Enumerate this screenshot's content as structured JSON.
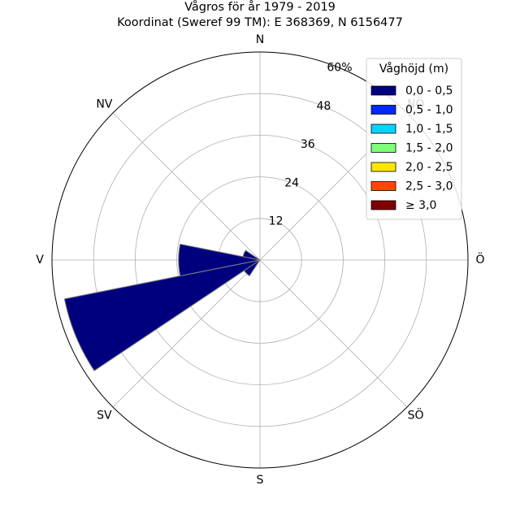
{
  "chart_data": {
    "type": "polar-bar",
    "title": "Vågros för år 1979 - 2019",
    "subtitle": "Koordinat (Sweref 99 TM): E 368369, N 6156477",
    "directions": [
      {
        "label": "N",
        "angle": 0
      },
      {
        "label": "NV",
        "angle": 315
      },
      {
        "label": "V",
        "angle": 270
      },
      {
        "label": "SV",
        "angle": 225
      },
      {
        "label": "S",
        "angle": 180
      },
      {
        "label": "SÖ",
        "angle": 135
      },
      {
        "label": "Ö",
        "angle": 90
      },
      {
        "label": "NÖ",
        "angle": 45
      }
    ],
    "r_ticks": [
      "12",
      "24",
      "36",
      "48",
      "60%"
    ],
    "r_tick_values": [
      12,
      24,
      36,
      48,
      60
    ],
    "rmax": 60,
    "sector_width_deg": 22.5,
    "bars": [
      {
        "direction_deg": 247.5,
        "series": "0,0 - 0,5",
        "value": 57.5
      },
      {
        "direction_deg": 270,
        "series": "0,0 - 0,5",
        "value": 23.5
      },
      {
        "direction_deg": 292.5,
        "series": "0,0 - 0,5",
        "value": 5.0
      },
      {
        "direction_deg": 225,
        "series": "0,0 - 0,5",
        "value": 5.5
      }
    ],
    "legend": {
      "title": "Våghöjd (m)",
      "placement": "top-right",
      "entries": [
        {
          "label": "0,0 - 0,5",
          "color": "#00007f"
        },
        {
          "label": "0,5 - 1,0",
          "color": "#0028ff"
        },
        {
          "label": "1,0 - 1,5",
          "color": "#00d4ff"
        },
        {
          "label": "1,5 - 2,0",
          "color": "#7dff7a"
        },
        {
          "label": "2,0 - 2,5",
          "color": "#ffe600"
        },
        {
          "label": "2,5 - 3,0",
          "color": "#ff4800"
        },
        {
          "label": "≥ 3,0",
          "color": "#7f0000"
        }
      ]
    },
    "grid": true
  }
}
